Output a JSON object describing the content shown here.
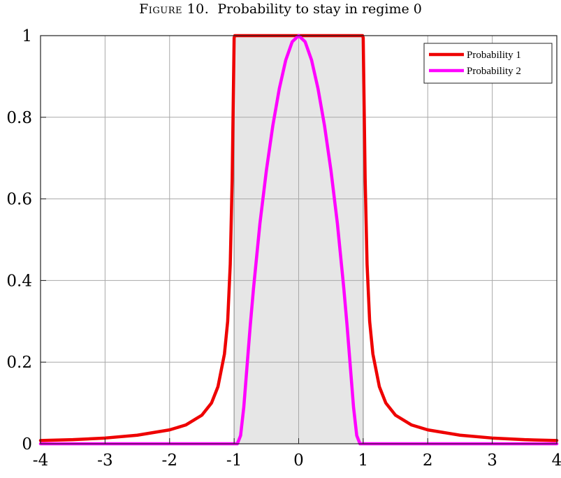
{
  "figure": {
    "label": "Figure 10.",
    "caption": "Probability to stay in regime 0"
  },
  "chart_data": {
    "type": "line",
    "title": "",
    "xlabel": "",
    "ylabel": "",
    "xlim": [
      -4,
      4
    ],
    "ylim": [
      0,
      1
    ],
    "xticks": [
      -4,
      -3,
      -2,
      -1,
      0,
      1,
      2,
      3,
      4
    ],
    "yticks": [
      0,
      0.2,
      0.4,
      0.6,
      0.8,
      1
    ],
    "grid": true,
    "legend_position": "top-right",
    "shaded_region": {
      "x": [
        -1,
        1
      ],
      "color": "#e6e6e6"
    },
    "series": [
      {
        "name": "Probability 1",
        "color": "#ee0000",
        "x": [
          -4,
          -3.5,
          -3,
          -2.5,
          -2,
          -1.75,
          -1.5,
          -1.35,
          -1.25,
          -1.15,
          -1.1,
          -1.06,
          -1.03,
          -1.01,
          -1.0,
          -0.99,
          -0.5,
          0,
          0.5,
          0.99,
          1.0,
          1.01,
          1.03,
          1.06,
          1.1,
          1.15,
          1.25,
          1.35,
          1.5,
          1.75,
          2,
          2.5,
          3,
          3.5,
          4
        ],
        "y": [
          0.008,
          0.01,
          0.014,
          0.021,
          0.034,
          0.046,
          0.07,
          0.1,
          0.14,
          0.22,
          0.3,
          0.44,
          0.65,
          0.88,
          0.995,
          1.0,
          1.0,
          1.0,
          1.0,
          1.0,
          0.995,
          0.88,
          0.65,
          0.44,
          0.3,
          0.22,
          0.14,
          0.1,
          0.07,
          0.046,
          0.034,
          0.021,
          0.014,
          0.01,
          0.008
        ]
      },
      {
        "name": "Probability 2",
        "color": "#ff00ff",
        "x": [
          -4,
          -1.0,
          -0.95,
          -0.9,
          -0.85,
          -0.8,
          -0.75,
          -0.7,
          -0.6,
          -0.5,
          -0.4,
          -0.3,
          -0.2,
          -0.1,
          0,
          0.1,
          0.2,
          0.3,
          0.4,
          0.5,
          0.6,
          0.7,
          0.75,
          0.8,
          0.85,
          0.9,
          0.95,
          1.0,
          4
        ],
        "y": [
          0,
          0,
          0.0,
          0.02,
          0.09,
          0.19,
          0.29,
          0.38,
          0.54,
          0.67,
          0.78,
          0.87,
          0.94,
          0.985,
          1.0,
          0.985,
          0.94,
          0.87,
          0.78,
          0.67,
          0.54,
          0.38,
          0.29,
          0.19,
          0.09,
          0.02,
          0.0,
          0,
          0
        ]
      }
    ]
  }
}
